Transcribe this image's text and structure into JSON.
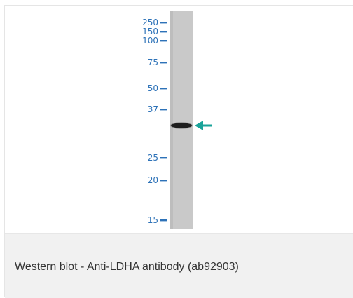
{
  "blot": {
    "marker_labels": [
      "250",
      "150",
      "100",
      "75",
      "50",
      "37",
      "25",
      "20",
      "15"
    ],
    "marker_color": "#2d72b8",
    "lane_color": "#c9c9c9",
    "band_color": "#1e1e1e",
    "arrow_color": "#19a39a",
    "arrow_icon": "arrow-left-icon"
  },
  "caption": {
    "text": "Western blot - Anti-LDHA antibody (ab92903)"
  }
}
